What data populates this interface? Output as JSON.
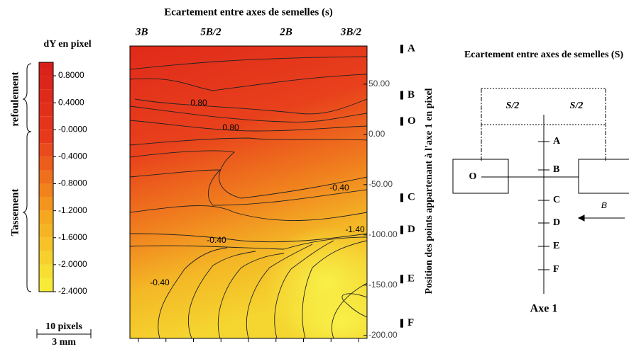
{
  "chart_data": {
    "type": "contour",
    "title": "Ecartement entre axes de semelles (s)",
    "categories": [
      "3B",
      "5B/2",
      "2B",
      "3B/2"
    ],
    "y2label": "Position des points appartenant à l'axe 1 en pixel",
    "ylim": [
      -203,
      88
    ],
    "yticks": [
      {
        "value": 50,
        "label": "50.00"
      },
      {
        "value": 0,
        "label": "0.00"
      },
      {
        "value": -50,
        "label": "-50.00"
      },
      {
        "value": -100,
        "label": "-100.00"
      },
      {
        "value": -150,
        "label": "-150.00"
      },
      {
        "value": -200,
        "label": "-200.00"
      }
    ],
    "points": [
      {
        "label": "A",
        "value": 85
      },
      {
        "label": "B",
        "value": 39
      },
      {
        "label": "O",
        "value": 13
      },
      {
        "label": "C",
        "value": -63
      },
      {
        "label": "D",
        "value": -95
      },
      {
        "label": "E",
        "value": -144
      },
      {
        "label": "F",
        "value": -188
      }
    ],
    "colorbar": {
      "title": "dY en pixel",
      "clim": [
        -2.4,
        1.0
      ],
      "colormap": [
        "#f7f23a",
        "#f5a51c",
        "#e83a1c",
        "#d81e1a"
      ],
      "ticks": [
        {
          "value": 0.8,
          "label": "0.8000"
        },
        {
          "value": 0.4,
          "label": "0.4000"
        },
        {
          "value": 0,
          "label": "-0.0000"
        },
        {
          "value": -0.4,
          "label": "-0.4000"
        },
        {
          "value": -0.8,
          "label": "-0.8000"
        },
        {
          "value": -1.2,
          "label": "-1.2000"
        },
        {
          "value": -1.6,
          "label": "-1.6000"
        },
        {
          "value": -2.0,
          "label": "-2.0000"
        },
        {
          "value": -2.4,
          "label": "-2.4000"
        }
      ]
    },
    "contour_labels": [
      "0.80",
      "0.80",
      "-0.40",
      "-0.40",
      "-1.40",
      "-0.40"
    ],
    "braces": [
      "refoulement",
      "Tassement"
    ],
    "scale": [
      "10 pixels",
      "3 mm"
    ],
    "schematic": {
      "title": "Ecartement entre axes de semelles (S)",
      "half_labels": [
        "S/2",
        "S/2"
      ],
      "origin": "O",
      "points": [
        "A",
        "B",
        "C",
        "D",
        "E",
        "F"
      ],
      "dimension": "B",
      "axis": "Axe 1"
    }
  }
}
